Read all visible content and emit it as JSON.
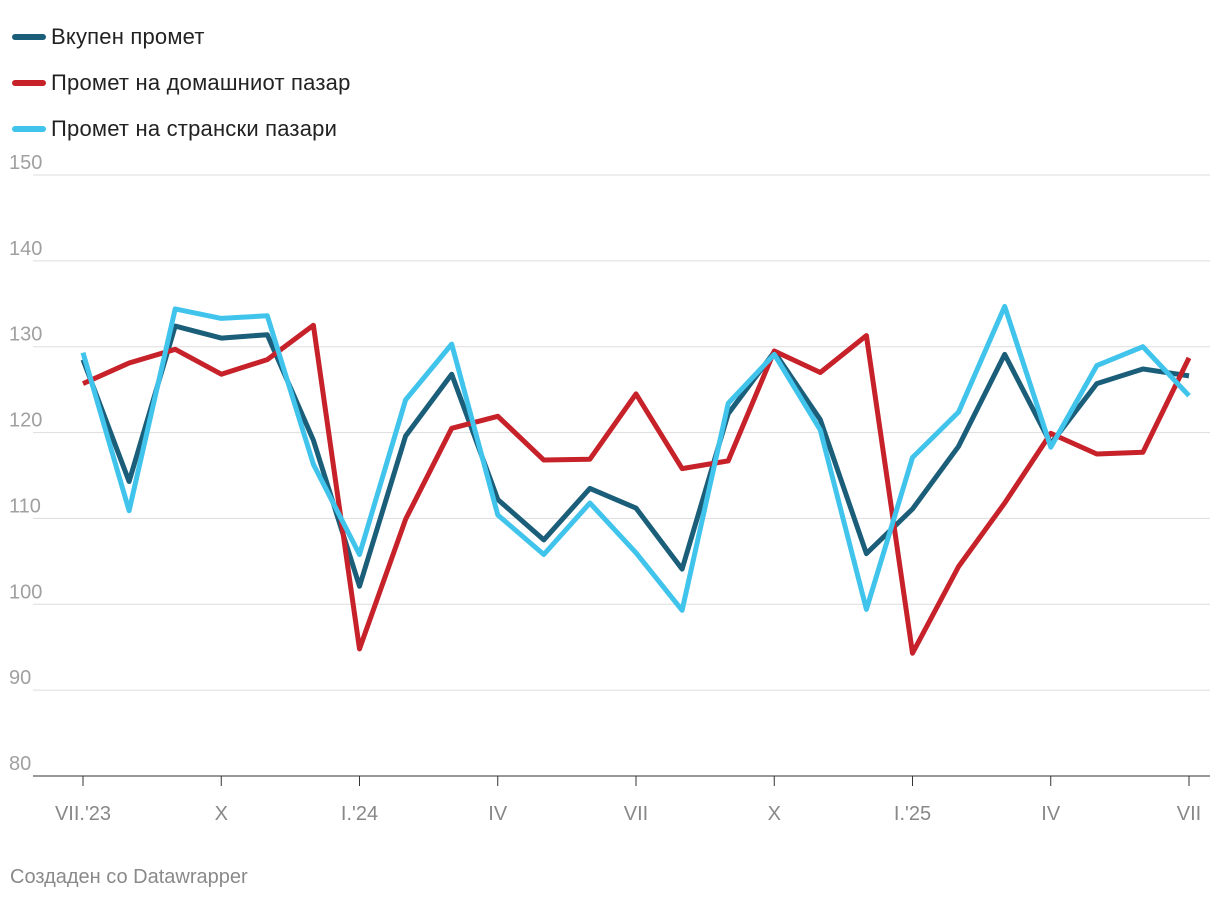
{
  "chart_data": {
    "type": "line",
    "title": "",
    "xlabel": "",
    "ylabel": "",
    "ylim": [
      80,
      150
    ],
    "yticks": [
      80,
      90,
      100,
      110,
      120,
      130,
      140,
      150
    ],
    "grid": true,
    "legend_position": "top-left",
    "x": [
      "VII.'23",
      "VIII",
      "IX",
      "X",
      "XI",
      "XII",
      "I.'24",
      "II",
      "III",
      "IV",
      "V",
      "VI",
      "VII",
      "VIII",
      "IX",
      "X",
      "XI",
      "XII",
      "I.'25",
      "II",
      "III",
      "IV",
      "V",
      "VI",
      "VII"
    ],
    "xtick_labels": [
      {
        "index": 0,
        "label": "VII.'23"
      },
      {
        "index": 3,
        "label": "X"
      },
      {
        "index": 6,
        "label": "I.'24"
      },
      {
        "index": 9,
        "label": "IV"
      },
      {
        "index": 12,
        "label": "VII"
      },
      {
        "index": 15,
        "label": "X"
      },
      {
        "index": 18,
        "label": "I.'25"
      },
      {
        "index": 21,
        "label": "IV"
      },
      {
        "index": 24,
        "label": "VII"
      }
    ],
    "series": [
      {
        "name": "Вкупен промет",
        "color": "#1b5e79",
        "values": [
          128.5,
          114.3,
          132.4,
          131.0,
          131.4,
          119.1,
          102.1,
          119.6,
          126.8,
          112.2,
          107.5,
          113.5,
          111.2,
          104.1,
          122.2,
          129.4,
          121.5,
          105.9,
          111.1,
          118.4,
          129.1,
          118.7,
          125.7,
          127.4,
          126.6
        ]
      },
      {
        "name": "Промет на домашниот пазар",
        "color": "#c7212a",
        "values": [
          125.7,
          128.1,
          129.7,
          126.8,
          128.5,
          132.5,
          94.8,
          109.9,
          120.5,
          121.9,
          116.8,
          116.9,
          124.5,
          115.8,
          116.7,
          129.5,
          127.0,
          131.3,
          94.3,
          104.4,
          111.8,
          119.9,
          117.5,
          117.7,
          128.7
        ]
      },
      {
        "name": "Промет на странски пазари",
        "color": "#41c4ec",
        "values": [
          129.3,
          110.9,
          134.4,
          133.3,
          133.6,
          116.3,
          105.8,
          123.8,
          130.3,
          110.4,
          105.8,
          111.8,
          106.0,
          99.3,
          123.4,
          129.1,
          120.3,
          99.4,
          117.1,
          122.4,
          134.7,
          118.3,
          127.8,
          130.0,
          124.3
        ]
      }
    ]
  },
  "footer": {
    "credit": "Создаден со Datawrapper"
  }
}
